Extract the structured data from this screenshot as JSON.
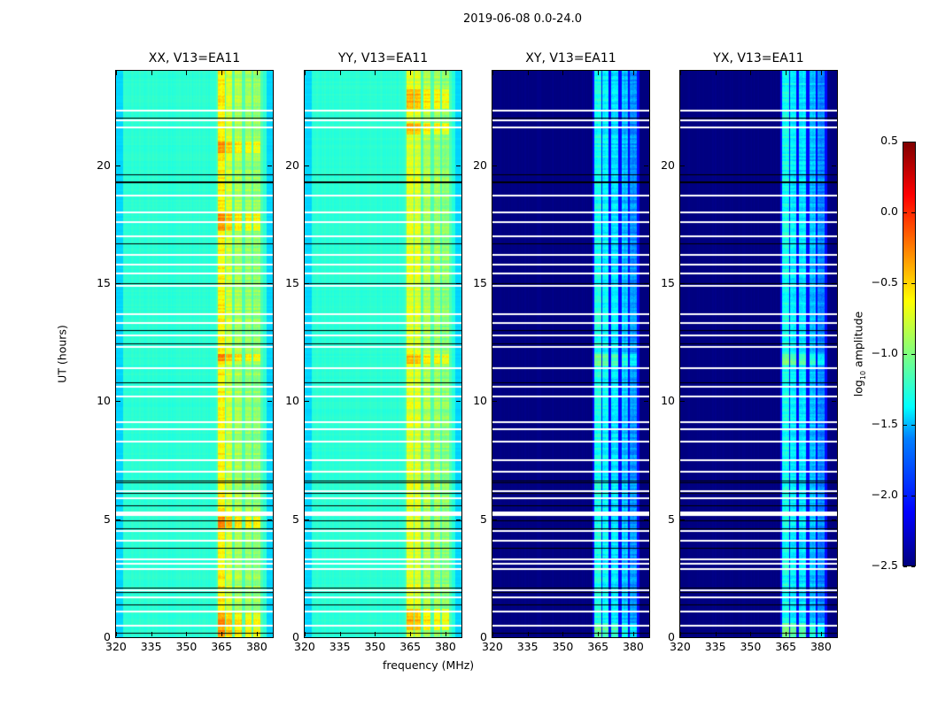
{
  "chart_data": {
    "type": "heatmap",
    "title": "2019-06-08 0.0-24.0",
    "xlabel": "frequency (MHz)",
    "ylabel": "UT (hours)",
    "xlim": [
      320,
      386.8
    ],
    "ylim": [
      0,
      24
    ],
    "xticks": [
      320,
      335,
      350,
      365,
      380
    ],
    "yticks": [
      0,
      5,
      10,
      15,
      20
    ],
    "colormap": "jet",
    "colorbar": {
      "label_main": "log",
      "label_sub": "10",
      "label_rest": " amplitude",
      "range": [
        -2.5,
        0.5
      ],
      "ticks": [
        "0.5",
        "0.0",
        "−0.5",
        "−1.0",
        "−1.5",
        "−2.0",
        "−2.5"
      ],
      "tick_values": [
        0.5,
        0.0,
        -0.5,
        -1.0,
        -1.5,
        -2.0,
        -2.5
      ]
    },
    "panels": [
      {
        "title": "XX, V13=EA11",
        "baseline": -1.25,
        "edge": -1.5,
        "gap": -1.15,
        "bands": [
          [
            363.5,
            366.3,
            -0.6
          ],
          [
            366.8,
            369.6,
            -0.75
          ],
          [
            370.5,
            373.6,
            -0.85
          ],
          [
            375,
            377.6,
            -0.9
          ],
          [
            378.4,
            381.5,
            -0.95
          ]
        ],
        "hot_hours": [
          [
            0,
            1
          ],
          [
            4.6,
            5.1
          ],
          [
            11.7,
            12.0
          ],
          [
            17.2,
            18.0
          ],
          [
            20.5,
            21.0
          ]
        ]
      },
      {
        "title": "YY, V13=EA11",
        "baseline": -1.25,
        "edge": -1.5,
        "gap": -1.15,
        "bands": [
          [
            363.5,
            366.3,
            -0.7
          ],
          [
            366.8,
            369.6,
            -0.72
          ],
          [
            370.5,
            373.6,
            -0.85
          ],
          [
            375,
            377.6,
            -0.9
          ],
          [
            378.4,
            381.5,
            -0.95
          ]
        ],
        "hot_hours": [
          [
            0.3,
            1.2
          ],
          [
            11.6,
            12.0
          ],
          [
            21.3,
            21.8
          ],
          [
            22.4,
            23.2
          ]
        ]
      },
      {
        "title": "XY, V13=EA11",
        "baseline": -2.5,
        "edge": -2.5,
        "gap": -2.1,
        "bands": [
          [
            363.5,
            366.3,
            -1.3
          ],
          [
            366.8,
            369.6,
            -1.4
          ],
          [
            370.5,
            373.6,
            -1.45
          ],
          [
            375,
            377.6,
            -1.55
          ],
          [
            378.4,
            381.5,
            -1.7
          ]
        ],
        "hot_hours": [
          [
            0,
            0.6
          ],
          [
            11.5,
            12.0
          ]
        ]
      },
      {
        "title": "YX, V13=EA11",
        "baseline": -2.5,
        "edge": -2.5,
        "gap": -2.1,
        "bands": [
          [
            363.5,
            366.3,
            -1.3
          ],
          [
            366.8,
            369.6,
            -1.4
          ],
          [
            370.5,
            373.6,
            -1.45
          ],
          [
            375,
            377.6,
            -1.55
          ],
          [
            378.4,
            381.5,
            -1.7
          ]
        ],
        "hot_hours": [
          [
            0,
            0.6
          ],
          [
            11.5,
            12.0
          ]
        ]
      }
    ],
    "flagged_hours": [
      22.3,
      21.9,
      21.6,
      18.7,
      18.0,
      17.6,
      17.0,
      16.2,
      15.8,
      15.4,
      14.9,
      13.7,
      13.3,
      12.8,
      12.3,
      11.4,
      10.6,
      10.2,
      9.1,
      8.8,
      8.3,
      7.5,
      7.0,
      6.2,
      5.9,
      5.3,
      4.5,
      4.1,
      3.3,
      3.1,
      2.9,
      2.0,
      1.7,
      1.1,
      0.5
    ],
    "separator_hours": [
      22.0,
      19.6,
      19.3,
      16.7,
      15.0,
      13.0,
      12.45,
      10.8,
      6.65,
      6.55,
      6.1,
      5.6,
      4.95,
      4.6,
      3.8,
      2.1,
      1.9,
      1.4,
      0.2
    ]
  }
}
